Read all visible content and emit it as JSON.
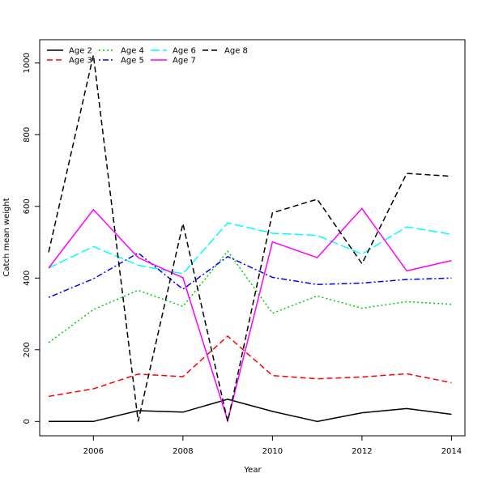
{
  "chart_data": {
    "type": "line",
    "xlabel": "Year",
    "ylabel": "Catch mean weight",
    "xlim": [
      2004.8,
      2014.3
    ],
    "ylim": [
      -40,
      1065
    ],
    "xticks": [
      2006,
      2008,
      2010,
      2012,
      2014
    ],
    "yticks": [
      0,
      200,
      400,
      600,
      800,
      1000
    ],
    "legend_position": "top-left",
    "grid": false,
    "x": [
      2005,
      2006,
      2007,
      2008,
      2009,
      2010,
      2011,
      2012,
      2013,
      2014
    ],
    "series": [
      {
        "name": "Age 2",
        "color": "#000000",
        "dash": "solid",
        "values": [
          0,
          0,
          30,
          26,
          62,
          28,
          0,
          24,
          36,
          20
        ]
      },
      {
        "name": "Age 3",
        "color": "#ff0000",
        "dash": "dashed",
        "values": [
          70,
          91,
          132,
          125,
          238,
          128,
          119,
          124,
          133,
          108
        ]
      },
      {
        "name": "Age 4",
        "color": "#00cd00",
        "dash": "dotted",
        "values": [
          220,
          312,
          366,
          321,
          475,
          302,
          350,
          316,
          334,
          327
        ]
      },
      {
        "name": "Age 5",
        "color": "#0000ff",
        "dash": "dotdash",
        "values": [
          346,
          398,
          470,
          369,
          460,
          402,
          382,
          386,
          396,
          400
        ]
      },
      {
        "name": "Age 6",
        "color": "#00ffff",
        "dash": "longdash",
        "values": [
          428,
          488,
          436,
          412,
          554,
          525,
          519,
          467,
          543,
          522
        ]
      },
      {
        "name": "Age 7",
        "color": "#ff00ff",
        "dash": "solid",
        "values": [
          428,
          591,
          457,
          401,
          2,
          501,
          457,
          594,
          420,
          449
        ]
      },
      {
        "name": "Age 8",
        "color": "#000000",
        "dash": "dashed",
        "values": [
          472,
          1022,
          0,
          552,
          0,
          582,
          620,
          440,
          692,
          684
        ]
      }
    ]
  }
}
